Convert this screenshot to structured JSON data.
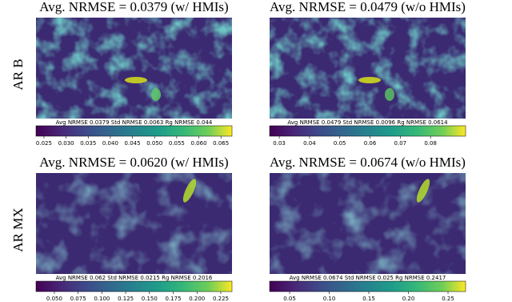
{
  "chart_data": [
    {
      "type": "heatmap-colorbar",
      "title": "Avg. NRMSE = 0.0379 (w/ HMIs)",
      "row_label": "AR B",
      "stats": "Avg NRMSE 0.0379  Std NRMSE 0.0063  Rg NRMSE 0.044",
      "clim": [
        0.0232,
        0.0675
      ],
      "cticks": [
        0.025,
        {
          "value": 0.03,
          "label": "0.030"
        },
        0.035,
        {
          "value": 0.04,
          "label": "0.040"
        },
        0.045,
        {
          "value": 0.05,
          "label": "0.050"
        },
        0.055,
        {
          "value": 0.06,
          "label": "0.060"
        },
        0.065
      ]
    },
    {
      "type": "heatmap-colorbar",
      "title": "Avg. NRMSE = 0.0479 (w/o HMIs)",
      "stats": "Avg NRMSE 0.0479  Std NRMSE 0.0096  Rg NRMSE 0.0614",
      "clim": [
        0.0268,
        0.0916
      ],
      "cticks": [
        0.03,
        0.04,
        0.05,
        0.06,
        0.07,
        0.08
      ]
    },
    {
      "type": "heatmap-colorbar",
      "title": "Avg. NRMSE = 0.0620 (w/ HMIs)",
      "row_label": "AR MX",
      "stats": "Avg NRMSE 0.062  Std NRMSE 0.0215  Rg NRMSE 0.2016",
      "clim": [
        0.0307,
        0.2368
      ],
      "cticks": [
        {
          "value": 0.05,
          "label": "0.050"
        },
        0.075,
        {
          "value": 0.1,
          "label": "0.100"
        },
        0.125,
        {
          "value": 0.15,
          "label": "0.150"
        },
        0.175,
        {
          "value": 0.2,
          "label": "0.200"
        },
        0.225
      ]
    },
    {
      "type": "heatmap-colorbar",
      "title": "Avg. NRMSE = 0.0674 (w/o HMIs)",
      "stats": "Avg NRMSE 0.0674  Std NRMSE 0.025  Rg NRMSE 0.2417",
      "clim": [
        0.0247,
        0.2722
      ],
      "cticks": [
        0.05,
        {
          "value": 0.1,
          "label": "0.10"
        },
        0.15,
        {
          "value": 0.2,
          "label": "0.20"
        },
        0.25
      ]
    }
  ]
}
